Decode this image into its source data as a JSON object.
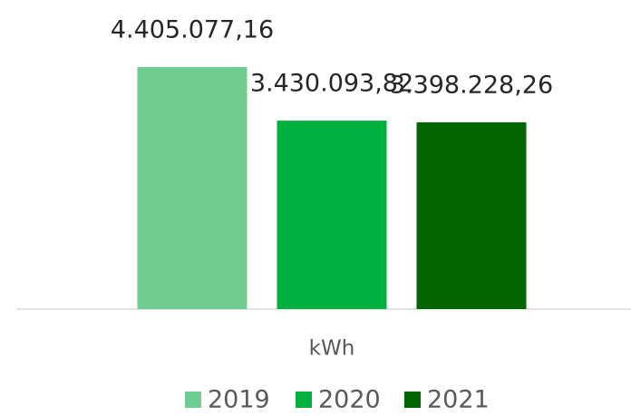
{
  "chart_data": {
    "type": "bar",
    "categories": [
      "kWh"
    ],
    "series": [
      {
        "name": "2019",
        "color": "#6fce8f",
        "values": [
          4405077.16
        ],
        "value_labels": [
          "4.405.077,16"
        ]
      },
      {
        "name": "2020",
        "color": "#00b140",
        "values": [
          3430093.82
        ],
        "value_labels": [
          "3.430.093,82"
        ]
      },
      {
        "name": "2021",
        "color": "#006400",
        "values": [
          3398228.26
        ],
        "value_labels": [
          "3.398.228,26"
        ]
      }
    ],
    "legend": "bottom"
  }
}
